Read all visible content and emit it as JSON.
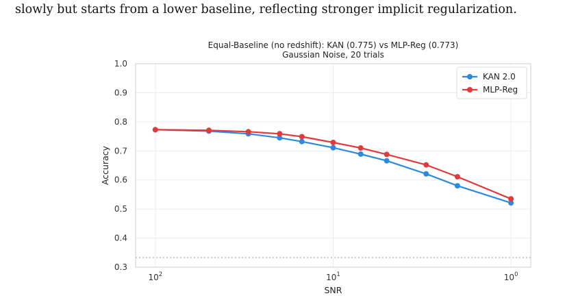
{
  "paper": {
    "text_line": "slowly but starts from a lower baseline, reflecting stronger implicit regularization."
  },
  "chart_data": {
    "type": "line",
    "title": "Equal-Baseline (no redshift): KAN (0.775) vs MLP-Reg (0.773)",
    "subtitle": "Gaussian Noise, 20 trials",
    "xlabel": "SNR",
    "ylabel": "Accuracy",
    "x_scale": "log",
    "x_reversed": true,
    "xlim": [
      100,
      1
    ],
    "ylim": [
      0.3,
      1.0
    ],
    "yticks": [
      "0.3",
      "0.4",
      "0.5",
      "0.6",
      "0.7",
      "0.8",
      "0.9",
      "1.0"
    ],
    "xticks": [
      {
        "value": 100,
        "base": "10",
        "exp": "2"
      },
      {
        "value": 10,
        "base": "10",
        "exp": "1"
      },
      {
        "value": 1,
        "base": "10",
        "exp": "0"
      }
    ],
    "x": [
      100,
      50,
      30,
      20,
      15,
      10,
      7,
      5,
      3,
      2,
      1
    ],
    "series": [
      {
        "name": "KAN 2.0",
        "color": "#2b8ae0",
        "values": [
          0.773,
          0.768,
          0.759,
          0.745,
          0.732,
          0.711,
          0.689,
          0.666,
          0.621,
          0.58,
          0.521
        ]
      },
      {
        "name": "MLP-Reg",
        "color": "#e03a3a",
        "values": [
          0.773,
          0.771,
          0.766,
          0.759,
          0.749,
          0.729,
          0.71,
          0.688,
          0.652,
          0.611,
          0.535
        ]
      }
    ],
    "reference_line": {
      "y": 0.333,
      "style": "dotted",
      "color": "#aaaaaa"
    },
    "grid": true,
    "legend_position": "top-right"
  }
}
